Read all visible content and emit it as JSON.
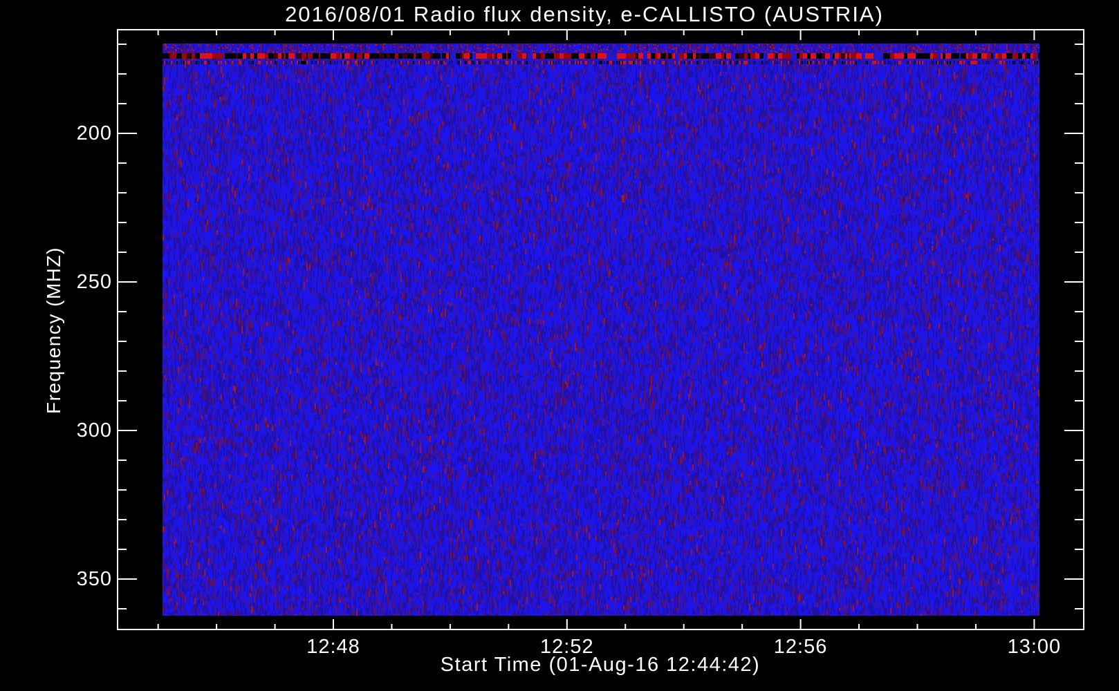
{
  "chart_data": {
    "type": "heatmap",
    "title": "2016/08/01  Radio flux density, e-CALLISTO (AUSTRIA)",
    "xlabel": "Start Time (01-Aug-16 12:44:42)",
    "ylabel": "Frequency (MHZ)",
    "x_axis": {
      "tick_labels": [
        "12:48",
        "12:52",
        "12:56",
        "13:00"
      ],
      "tick_minutes": [
        48,
        52,
        56,
        60
      ],
      "minor_tick_minutes": [
        45,
        46,
        47,
        49,
        50,
        51,
        53,
        54,
        55,
        57,
        58,
        59
      ],
      "start_time": "01-Aug-16 12:44:42"
    },
    "y_axis": {
      "tick_labels": [
        "200",
        "250",
        "300",
        "350"
      ],
      "tick_values_mhz": [
        200,
        250,
        300,
        350
      ],
      "minor_ticks_mhz": [
        170,
        180,
        190,
        210,
        220,
        230,
        240,
        260,
        270,
        280,
        290,
        310,
        320,
        330,
        340,
        360
      ],
      "range_mhz_estimate": [
        170,
        361
      ],
      "direction": "frequency increases downward"
    },
    "legend": "none",
    "grid": "off",
    "colors": {
      "background": "#000000",
      "axis": "#ffffff",
      "text": "#ffffff",
      "noise_blues": [
        "#1b13f0",
        "#2218d8",
        "#1a11b4",
        "#2a0f9a",
        "#3f0e85"
      ],
      "noise_red_purples": [
        "#5c1060",
        "#7c1240",
        "#9a1830"
      ],
      "rfi_band_colors": [
        "#e31111",
        "#9c0505",
        "#000000"
      ]
    },
    "features": {
      "description": "Uniform blue vertical-streak noise (quiet low flux) filling the whole spectrogram; two horizontal RFI stripes near the top of the frequency band",
      "rfi_bands": [
        {
          "freq_mhz_approx": "173-175",
          "appearance": "strong broken stripe of bright red, dark red and black segments"
        },
        {
          "freq_mhz_approx": "176-177",
          "appearance": "thin dotted red/dark stripe"
        }
      ]
    }
  }
}
